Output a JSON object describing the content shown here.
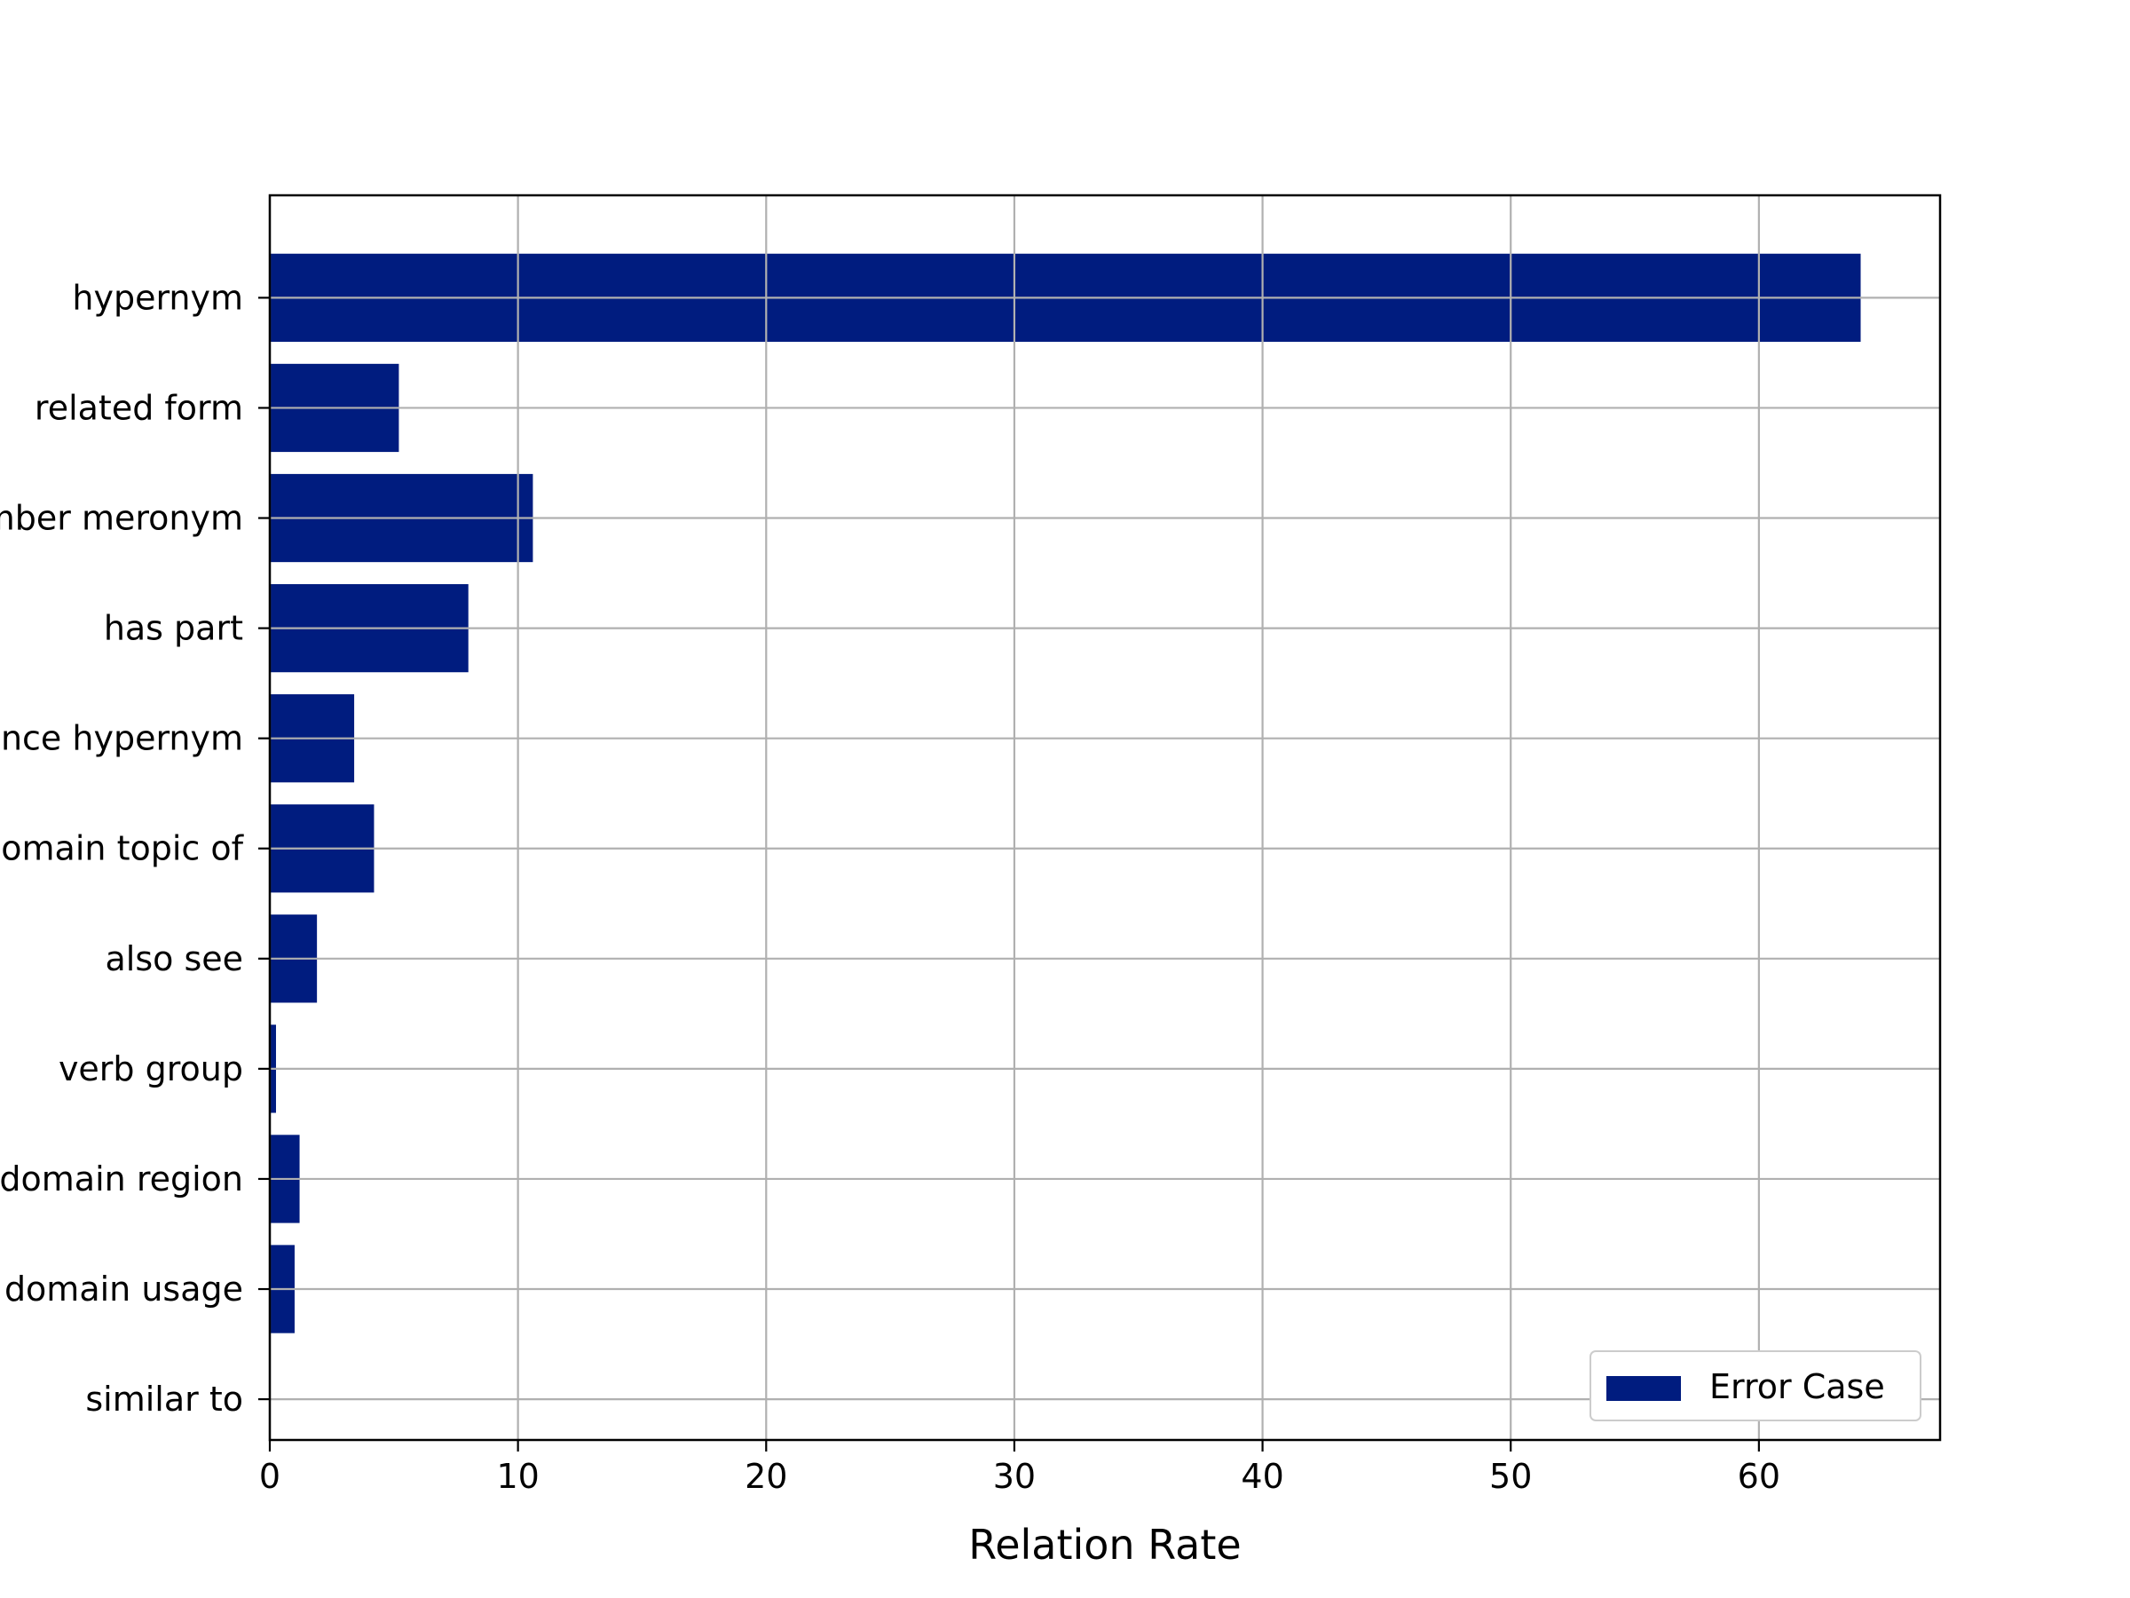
{
  "chart_data": {
    "type": "bar",
    "orientation": "horizontal",
    "categories": [
      "hypernym",
      "related form",
      "member meronym",
      "has part",
      "instance hypernym",
      "domain topic of",
      "also see",
      "verb group",
      "domain region",
      "domain usage",
      "similar to"
    ],
    "series": [
      {
        "name": "Error Case",
        "values": [
          64.1,
          5.2,
          10.6,
          8.0,
          3.4,
          4.2,
          1.9,
          0.25,
          1.2,
          1.0,
          0.0
        ]
      }
    ],
    "xlabel": "Relation Rate",
    "ylabel": "",
    "title": "",
    "xlim": [
      0,
      67.3
    ],
    "xticks": [
      0,
      10,
      20,
      30,
      40,
      50,
      60
    ],
    "grid": true,
    "legend_position": "lower right",
    "colors": {
      "bar": "#001c7f",
      "grid": "#b0b0b0",
      "axis": "#000000"
    }
  }
}
